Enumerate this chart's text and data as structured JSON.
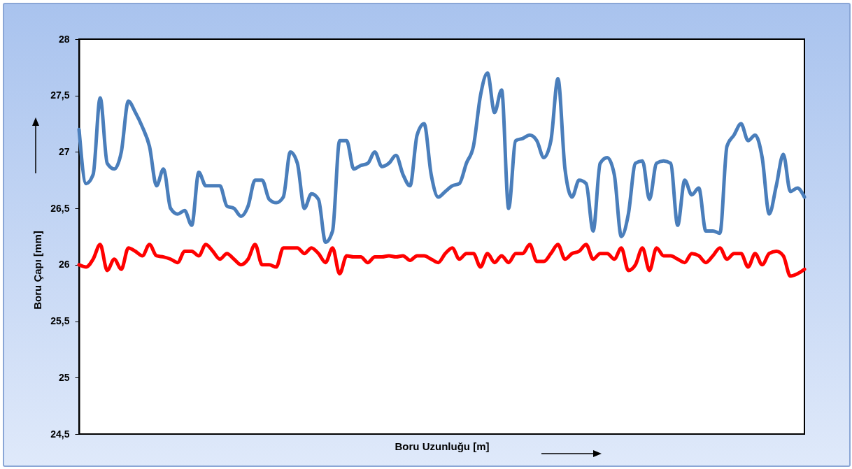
{
  "chart_data": {
    "type": "line",
    "xlabel": "Boru Uzunluğu  [m]",
    "ylabel": "Boru Çapı [mm]",
    "categories": [
      null,
      null,
      null,
      null,
      null,
      null,
      null,
      null,
      null,
      null,
      null,
      null,
      null,
      null,
      null,
      null,
      null,
      null,
      null,
      null,
      null,
      null,
      null,
      null,
      null,
      null,
      null,
      null,
      null,
      null,
      null,
      null,
      null,
      null,
      null,
      null,
      null,
      null,
      null,
      null,
      null,
      null,
      null,
      null,
      null,
      null,
      null,
      null,
      null,
      null,
      null,
      null,
      null,
      null,
      null,
      null,
      null,
      null,
      null,
      null,
      null,
      null,
      null,
      null,
      null,
      null,
      null,
      null,
      null,
      null,
      null,
      null,
      null,
      null,
      null,
      null,
      null,
      null,
      null,
      null,
      null,
      null,
      null,
      null,
      null,
      null,
      null,
      null,
      null,
      null,
      null,
      null,
      null,
      null,
      null,
      null,
      null,
      null,
      null,
      null,
      null,
      null,
      null,
      null
    ],
    "series": [
      {
        "color": "#4a7ebb",
        "values": [
          27.2,
          26.72,
          26.8,
          27.48,
          26.9,
          26.85,
          27.0,
          27.45,
          27.35,
          27.22,
          27.05,
          26.7,
          26.85,
          26.5,
          26.45,
          26.48,
          26.35,
          26.82,
          26.7,
          26.7,
          26.7,
          26.52,
          26.5,
          26.43,
          26.52,
          26.75,
          26.75,
          26.58,
          26.55,
          26.6,
          27.0,
          26.9,
          26.5,
          26.63,
          26.58,
          26.2,
          26.3,
          27.1,
          27.1,
          26.85,
          26.88,
          26.9,
          27.0,
          26.87,
          26.9,
          26.97,
          26.8,
          26.7,
          27.15,
          27.25,
          26.8,
          26.6,
          26.65,
          26.7,
          26.72,
          26.9,
          27.05,
          27.5,
          27.7,
          27.35,
          27.55,
          26.5,
          27.1,
          27.12,
          27.15,
          27.1,
          26.95,
          27.1,
          27.65,
          26.85,
          26.6,
          26.75,
          26.72,
          26.3,
          26.9,
          26.95,
          26.8,
          26.25,
          26.45,
          26.9,
          26.92,
          26.58,
          26.9,
          26.92,
          26.9,
          26.35,
          26.75,
          26.62,
          26.68,
          26.3,
          26.3,
          26.28,
          27.05,
          27.15,
          27.25,
          27.1,
          27.15,
          26.95,
          26.45,
          26.7,
          26.98,
          26.65,
          26.68,
          26.6
        ]
      },
      {
        "color": "#ff0000",
        "values": [
          26.0,
          25.98,
          26.05,
          26.18,
          25.95,
          26.05,
          25.96,
          26.15,
          26.12,
          26.08,
          26.18,
          26.08,
          26.07,
          26.05,
          26.02,
          26.12,
          26.12,
          26.08,
          26.18,
          26.12,
          26.05,
          26.1,
          26.05,
          26.0,
          26.05,
          26.18,
          26.0,
          26.0,
          25.98,
          26.15,
          26.15,
          26.15,
          26.1,
          26.15,
          26.1,
          26.02,
          26.15,
          25.92,
          26.08,
          26.07,
          26.07,
          26.02,
          26.07,
          26.07,
          26.08,
          26.07,
          26.08,
          26.04,
          26.08,
          26.08,
          26.05,
          26.02,
          26.1,
          26.15,
          26.05,
          26.1,
          26.1,
          25.98,
          26.1,
          26.02,
          26.08,
          26.02,
          26.1,
          26.1,
          26.18,
          26.03,
          26.03,
          26.1,
          26.18,
          26.05,
          26.1,
          26.12,
          26.18,
          26.05,
          26.1,
          26.1,
          26.05,
          26.15,
          25.95,
          26.0,
          26.15,
          25.95,
          26.15,
          26.08,
          26.08,
          26.05,
          26.02,
          26.1,
          26.08,
          26.02,
          26.08,
          26.15,
          26.05,
          26.1,
          26.1,
          25.98,
          26.1,
          26.0,
          26.1,
          26.12,
          26.08,
          25.9,
          25.92,
          25.96
        ]
      }
    ],
    "ylim": [
      24.5,
      28
    ],
    "yticks": [
      {
        "value": 24.5,
        "label": "24,5"
      },
      {
        "value": 25,
        "label": "25"
      },
      {
        "value": 25.5,
        "label": "25,5"
      },
      {
        "value": 26,
        "label": "26"
      },
      {
        "value": 26.5,
        "label": "26,5"
      },
      {
        "value": 27,
        "label": "27"
      },
      {
        "value": 27.5,
        "label": "27,5"
      },
      {
        "value": 28,
        "label": "28"
      }
    ]
  }
}
